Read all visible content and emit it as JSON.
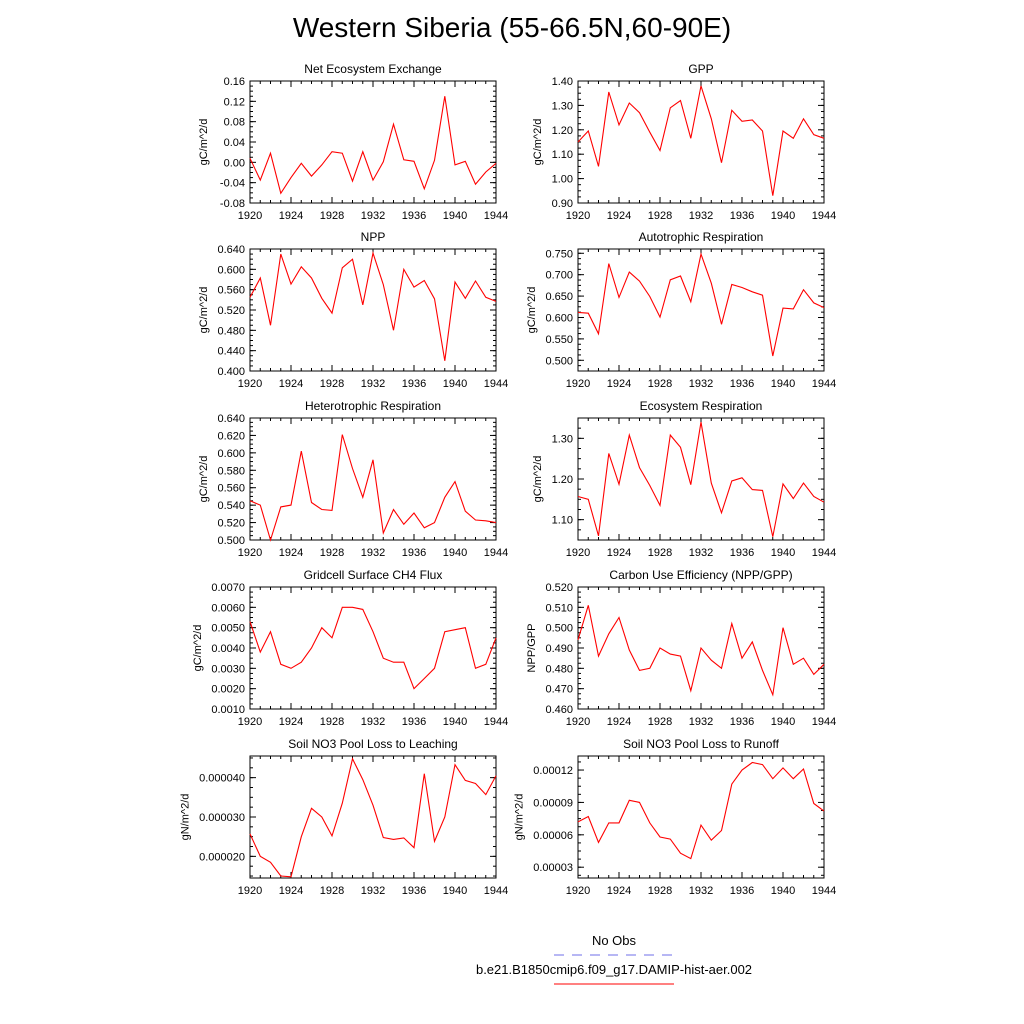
{
  "title": "Western Siberia (55-66.5N,60-90E)",
  "colors": {
    "series": "#ff0000",
    "obs": "#6f6fe8",
    "axis": "#000000"
  },
  "legend": {
    "items": [
      {
        "label": "No Obs",
        "style": "dashed",
        "color": "#6f6fe8"
      },
      {
        "label": "b.e21.B1850cmip6.f09_g17.DAMIP-hist-aer.002",
        "style": "solid",
        "color": "#ff0000"
      }
    ]
  },
  "chart_data": [
    {
      "type": "line",
      "title": "Net Ecosystem Exchange",
      "ylabel": "gC/m^2/d",
      "xlim": [
        1920,
        1944
      ],
      "ylim": [
        -0.08,
        0.16
      ],
      "xticks": [
        "1920",
        "1924",
        "1928",
        "1932",
        "1936",
        "1940",
        "1944"
      ],
      "yticks": [
        "-0.08",
        "-0.04",
        "0.00",
        "0.04",
        "0.08",
        "0.12",
        "0.16"
      ],
      "x": [
        1920,
        1921,
        1922,
        1923,
        1924,
        1925,
        1926,
        1927,
        1928,
        1929,
        1930,
        1931,
        1932,
        1933,
        1934,
        1935,
        1936,
        1937,
        1938,
        1939,
        1940,
        1941,
        1942,
        1943,
        1944
      ],
      "values": [
        0.008,
        -0.035,
        0.018,
        -0.061,
        -0.03,
        -0.002,
        -0.027,
        -0.005,
        0.021,
        0.018,
        -0.037,
        0.021,
        -0.035,
        0.001,
        0.075,
        0.005,
        0.002,
        -0.052,
        0.004,
        0.13,
        -0.005,
        0.002,
        -0.043,
        -0.019,
        -0.002
      ]
    },
    {
      "type": "line",
      "title": "GPP",
      "ylabel": "gC/m^2/d",
      "xlim": [
        1920,
        1944
      ],
      "ylim": [
        0.9,
        1.4
      ],
      "xticks": [
        "1920",
        "1924",
        "1928",
        "1932",
        "1936",
        "1940",
        "1944"
      ],
      "yticks": [
        "0.90",
        "1.00",
        "1.10",
        "1.20",
        "1.30",
        "1.40"
      ],
      "x": [
        1920,
        1921,
        1922,
        1923,
        1924,
        1925,
        1926,
        1927,
        1928,
        1929,
        1930,
        1931,
        1932,
        1933,
        1934,
        1935,
        1936,
        1937,
        1938,
        1939,
        1940,
        1941,
        1942,
        1943,
        1944
      ],
      "values": [
        1.15,
        1.195,
        1.05,
        1.355,
        1.22,
        1.31,
        1.27,
        1.19,
        1.115,
        1.29,
        1.32,
        1.165,
        1.38,
        1.245,
        1.065,
        1.28,
        1.235,
        1.24,
        1.195,
        0.93,
        1.195,
        1.165,
        1.245,
        1.18,
        1.165
      ]
    },
    {
      "type": "line",
      "title": "NPP",
      "ylabel": "gC/m^2/d",
      "xlim": [
        1920,
        1944
      ],
      "ylim": [
        0.4,
        0.64
      ],
      "xticks": [
        "1920",
        "1924",
        "1928",
        "1932",
        "1936",
        "1940",
        "1944"
      ],
      "yticks": [
        "0.400",
        "0.440",
        "0.480",
        "0.520",
        "0.560",
        "0.600",
        "0.640"
      ],
      "x": [
        1920,
        1921,
        1922,
        1923,
        1924,
        1925,
        1926,
        1927,
        1928,
        1929,
        1930,
        1931,
        1932,
        1933,
        1934,
        1935,
        1936,
        1937,
        1938,
        1939,
        1940,
        1941,
        1942,
        1943,
        1944
      ],
      "values": [
        0.545,
        0.583,
        0.49,
        0.63,
        0.571,
        0.605,
        0.583,
        0.543,
        0.514,
        0.603,
        0.62,
        0.53,
        0.632,
        0.57,
        0.48,
        0.6,
        0.565,
        0.578,
        0.542,
        0.42,
        0.575,
        0.543,
        0.577,
        0.545,
        0.537
      ]
    },
    {
      "type": "line",
      "title": "Autotrophic Respiration",
      "ylabel": "gC/m^2/d",
      "xlim": [
        1920,
        1944
      ],
      "ylim": [
        0.475,
        0.76
      ],
      "xticks": [
        "1920",
        "1924",
        "1928",
        "1932",
        "1936",
        "1940",
        "1944"
      ],
      "yticks": [
        "0.500",
        "0.550",
        "0.600",
        "0.650",
        "0.700",
        "0.750"
      ],
      "x": [
        1920,
        1921,
        1922,
        1923,
        1924,
        1925,
        1926,
        1927,
        1928,
        1929,
        1930,
        1931,
        1932,
        1933,
        1934,
        1935,
        1936,
        1937,
        1938,
        1939,
        1940,
        1941,
        1942,
        1943,
        1944
      ],
      "values": [
        0.612,
        0.61,
        0.562,
        0.726,
        0.647,
        0.706,
        0.685,
        0.649,
        0.601,
        0.688,
        0.697,
        0.637,
        0.748,
        0.68,
        0.584,
        0.677,
        0.67,
        0.66,
        0.652,
        0.51,
        0.622,
        0.62,
        0.665,
        0.634,
        0.623
      ]
    },
    {
      "type": "line",
      "title": "Heterotrophic Respiration",
      "ylabel": "gC/m^2/d",
      "xlim": [
        1920,
        1944
      ],
      "ylim": [
        0.5,
        0.64
      ],
      "xticks": [
        "1920",
        "1924",
        "1928",
        "1932",
        "1936",
        "1940",
        "1944"
      ],
      "yticks": [
        "0.500",
        "0.520",
        "0.540",
        "0.560",
        "0.580",
        "0.600",
        "0.620",
        "0.640"
      ],
      "x": [
        1920,
        1921,
        1922,
        1923,
        1924,
        1925,
        1926,
        1927,
        1928,
        1929,
        1930,
        1931,
        1932,
        1933,
        1934,
        1935,
        1936,
        1937,
        1938,
        1939,
        1940,
        1941,
        1942,
        1943,
        1944
      ],
      "values": [
        0.545,
        0.54,
        0.5,
        0.538,
        0.54,
        0.602,
        0.543,
        0.535,
        0.534,
        0.621,
        0.582,
        0.549,
        0.592,
        0.508,
        0.535,
        0.518,
        0.531,
        0.514,
        0.52,
        0.549,
        0.567,
        0.533,
        0.523,
        0.522,
        0.52
      ]
    },
    {
      "type": "line",
      "title": "Ecosystem Respiration",
      "ylabel": "gC/m^2/d",
      "xlim": [
        1920,
        1944
      ],
      "ylim": [
        1.05,
        1.35
      ],
      "xticks": [
        "1920",
        "1924",
        "1928",
        "1932",
        "1936",
        "1940",
        "1944"
      ],
      "yticks": [
        "1.10",
        "1.20",
        "1.30"
      ],
      "x": [
        1920,
        1921,
        1922,
        1923,
        1924,
        1925,
        1926,
        1927,
        1928,
        1929,
        1930,
        1931,
        1932,
        1933,
        1934,
        1935,
        1936,
        1937,
        1938,
        1939,
        1940,
        1941,
        1942,
        1943,
        1944
      ],
      "values": [
        1.157,
        1.15,
        1.06,
        1.263,
        1.187,
        1.308,
        1.228,
        1.184,
        1.135,
        1.308,
        1.278,
        1.186,
        1.34,
        1.19,
        1.117,
        1.195,
        1.203,
        1.174,
        1.172,
        1.058,
        1.188,
        1.152,
        1.19,
        1.157,
        1.143
      ]
    },
    {
      "type": "line",
      "title": "Gridcell Surface CH4 Flux",
      "ylabel": "gC/m^2/d",
      "xlim": [
        1920,
        1944
      ],
      "ylim": [
        0.001,
        0.007
      ],
      "xticks": [
        "1920",
        "1924",
        "1928",
        "1932",
        "1936",
        "1940",
        "1944"
      ],
      "yticks": [
        "0.0010",
        "0.0020",
        "0.0030",
        "0.0040",
        "0.0050",
        "0.0060",
        "0.0070"
      ],
      "x": [
        1920,
        1921,
        1922,
        1923,
        1924,
        1925,
        1926,
        1927,
        1928,
        1929,
        1930,
        1931,
        1932,
        1933,
        1934,
        1935,
        1936,
        1937,
        1938,
        1939,
        1940,
        1941,
        1942,
        1943,
        1944
      ],
      "values": [
        0.0053,
        0.0038,
        0.0048,
        0.0032,
        0.003,
        0.0033,
        0.004,
        0.005,
        0.0045,
        0.006,
        0.006,
        0.0059,
        0.0048,
        0.0035,
        0.0033,
        0.0033,
        0.002,
        0.0025,
        0.003,
        0.0048,
        0.0049,
        0.005,
        0.003,
        0.0032,
        0.0045
      ]
    },
    {
      "type": "line",
      "title": "Carbon Use Efficiency (NPP/GPP)",
      "ylabel": "NPP/GPP",
      "xlim": [
        1920,
        1944
      ],
      "ylim": [
        0.46,
        0.52
      ],
      "xticks": [
        "1920",
        "1924",
        "1928",
        "1932",
        "1936",
        "1940",
        "1944"
      ],
      "yticks": [
        "0.460",
        "0.470",
        "0.480",
        "0.490",
        "0.500",
        "0.510",
        "0.520"
      ],
      "x": [
        1920,
        1921,
        1922,
        1923,
        1924,
        1925,
        1926,
        1927,
        1928,
        1929,
        1930,
        1931,
        1932,
        1933,
        1934,
        1935,
        1936,
        1937,
        1938,
        1939,
        1940,
        1941,
        1942,
        1943,
        1944
      ],
      "values": [
        0.494,
        0.511,
        0.486,
        0.497,
        0.505,
        0.489,
        0.479,
        0.48,
        0.49,
        0.487,
        0.486,
        0.469,
        0.49,
        0.484,
        0.48,
        0.502,
        0.485,
        0.493,
        0.479,
        0.467,
        0.5,
        0.482,
        0.485,
        0.477,
        0.482
      ]
    },
    {
      "type": "line",
      "title": "Soil NO3 Pool Loss to Leaching",
      "ylabel": "gN/m^2/d",
      "xlim": [
        1920,
        1944
      ],
      "ylim": [
        1.45e-05,
        4.55e-05
      ],
      "xticks": [
        "1920",
        "1924",
        "1928",
        "1932",
        "1936",
        "1940",
        "1944"
      ],
      "yticks": [
        "0.000020",
        "0.000030",
        "0.000040"
      ],
      "x": [
        1920,
        1921,
        1922,
        1923,
        1924,
        1925,
        1926,
        1927,
        1928,
        1929,
        1930,
        1931,
        1932,
        1933,
        1934,
        1935,
        1936,
        1937,
        1938,
        1939,
        1940,
        1941,
        1942,
        1943,
        1944
      ],
      "values": [
        2.57e-05,
        2e-05,
        1.85e-05,
        1.5e-05,
        1.48e-05,
        2.5e-05,
        3.22e-05,
        3e-05,
        2.52e-05,
        3.35e-05,
        4.48e-05,
        3.95e-05,
        3.3e-05,
        2.48e-05,
        2.43e-05,
        2.47e-05,
        2.22e-05,
        4.1e-05,
        2.38e-05,
        3e-05,
        4.33e-05,
        3.93e-05,
        3.85e-05,
        3.57e-05,
        4.05e-05
      ]
    },
    {
      "type": "line",
      "title": "Soil NO3 Pool Loss to Runoff",
      "ylabel": "gN/m^2/d",
      "xlim": [
        1920,
        1944
      ],
      "ylim": [
        2e-05,
        0.000133
      ],
      "xticks": [
        "1920",
        "1924",
        "1928",
        "1932",
        "1936",
        "1940",
        "1944"
      ],
      "yticks": [
        "0.00003",
        "0.00006",
        "0.00009",
        "0.00012"
      ],
      "x": [
        1920,
        1921,
        1922,
        1923,
        1924,
        1925,
        1926,
        1927,
        1928,
        1929,
        1930,
        1931,
        1932,
        1933,
        1934,
        1935,
        1936,
        1937,
        1938,
        1939,
        1940,
        1941,
        1942,
        1943,
        1944
      ],
      "values": [
        7.2e-05,
        7.7e-05,
        5.3e-05,
        7.1e-05,
        7.1e-05,
        9.2e-05,
        9e-05,
        7.1e-05,
        5.8e-05,
        5.6e-05,
        4.3e-05,
        3.8e-05,
        6.9e-05,
        5.5e-05,
        6.4e-05,
        0.000107,
        0.00012,
        0.000127,
        0.000125,
        0.000112,
        0.000122,
        0.000112,
        0.000121,
        8.9e-05,
        8.2e-05
      ]
    }
  ]
}
